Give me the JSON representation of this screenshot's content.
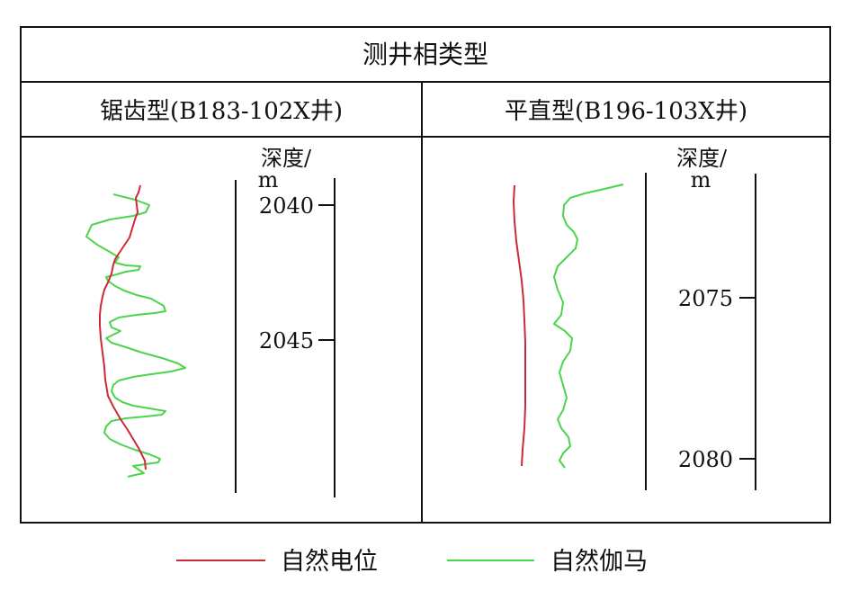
{
  "table": {
    "title": "测井相类型",
    "columns": [
      {
        "header": "锯齿型(B183-102X井)",
        "depth_label_line1": "深度/",
        "depth_label_line2": "m",
        "depth_ticks": [
          "2040",
          "2045"
        ]
      },
      {
        "header": "平直型(B196-103X井)",
        "depth_label_line1": "深度/",
        "depth_label_line2": "m",
        "depth_ticks": [
          "2075",
          "2080"
        ]
      }
    ]
  },
  "legend": {
    "items": [
      {
        "label": "自然电位",
        "color": "#cc2a36"
      },
      {
        "label": "自然伽马",
        "color": "#4cd44c"
      }
    ]
  },
  "colors": {
    "border": "#111111",
    "sp_curve": "#cc2a36",
    "gr_curve": "#4cd44c"
  }
}
